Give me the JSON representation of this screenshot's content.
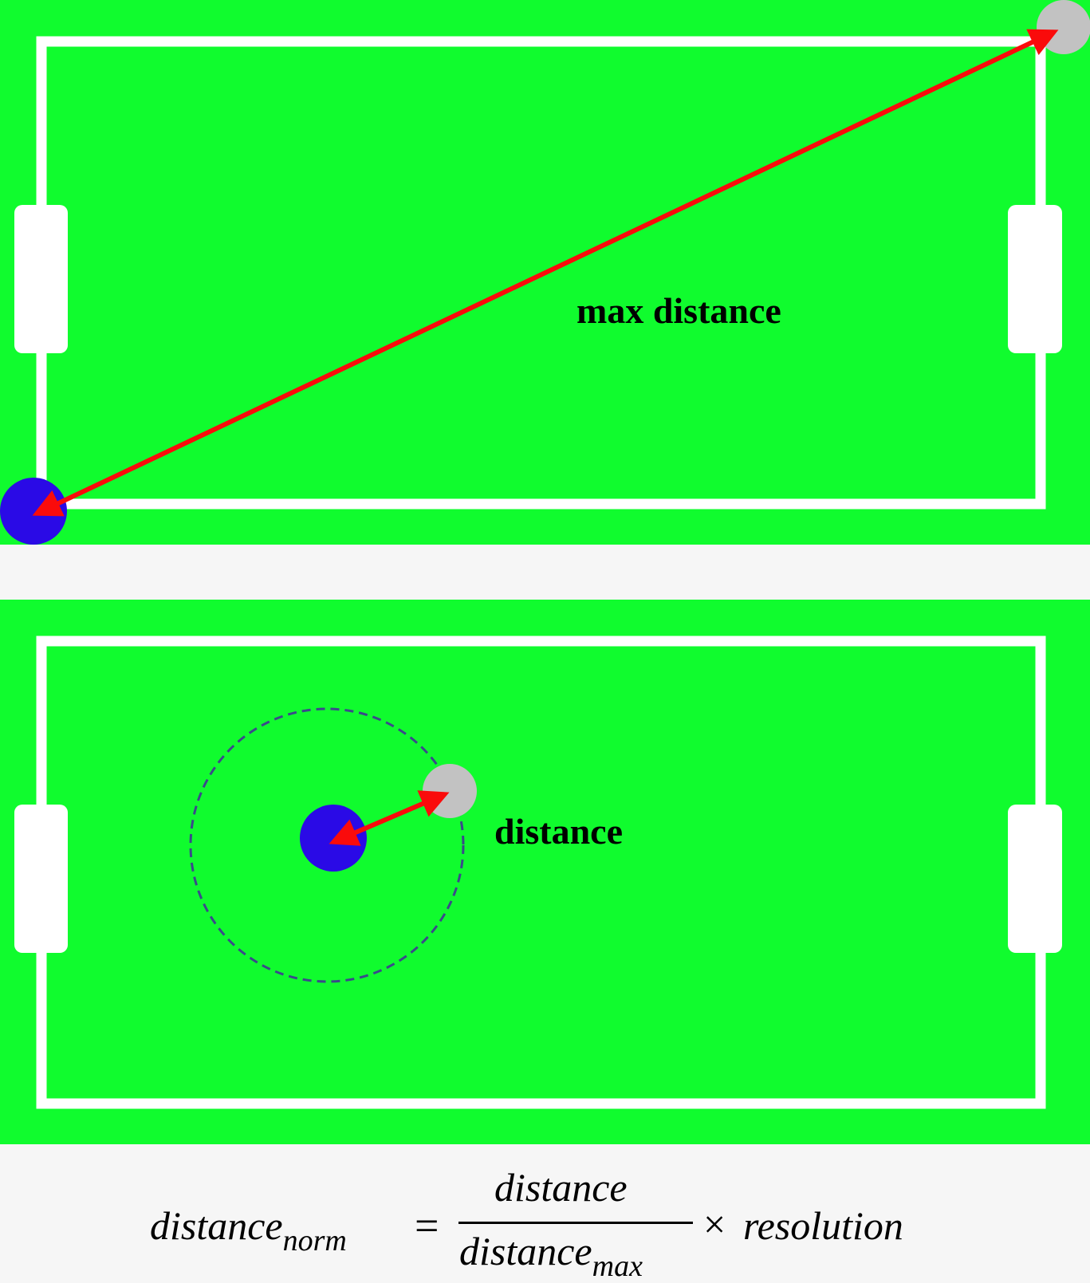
{
  "colors": {
    "field": "#10fc2e",
    "lines": "#ffffff",
    "background": "#f6f6f6",
    "robot": "#2a0ae6",
    "ball": "#c2c2c2",
    "arrow": "#fa0b0b",
    "dashed_circle": "#3a4a8a"
  },
  "top_panel": {
    "label": "max distance"
  },
  "bottom_panel": {
    "label": "distance"
  },
  "formula": {
    "lhs_base": "distance",
    "lhs_sub": "norm",
    "equals": "=",
    "numerator": "distance",
    "denominator_base": "distance",
    "denominator_sub": "max",
    "times": "×",
    "resolution": "resolution"
  }
}
